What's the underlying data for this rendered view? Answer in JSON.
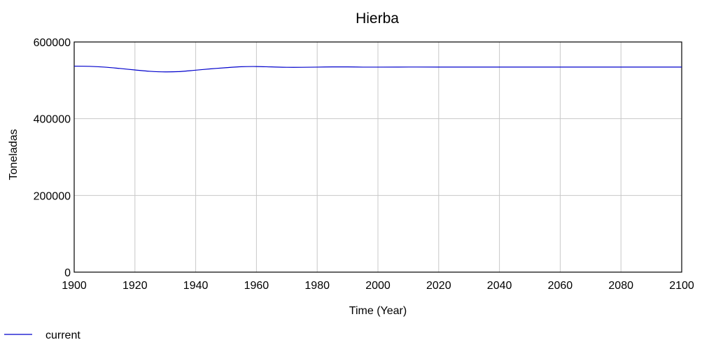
{
  "chart_data": {
    "type": "line",
    "title": "Hierba",
    "xlabel": "Time (Year)",
    "ylabel": "Toneladas",
    "xlim": [
      1900,
      2100
    ],
    "ylim": [
      0,
      600000
    ],
    "x_ticks": [
      "1900",
      "1920",
      "1940",
      "1960",
      "1980",
      "2000",
      "2020",
      "2040",
      "2060",
      "2080",
      "2100"
    ],
    "y_ticks": [
      "0",
      "200000",
      "400000",
      "600000"
    ],
    "grid": true,
    "legend_position": "bottom-left",
    "series": [
      {
        "name": "current",
        "color": "#0000cc",
        "x": [
          1900,
          1905,
          1910,
          1915,
          1920,
          1925,
          1930,
          1935,
          1940,
          1945,
          1950,
          1955,
          1960,
          1965,
          1970,
          1975,
          1980,
          1985,
          1990,
          1995,
          2000,
          2010,
          2020,
          2040,
          2060,
          2080,
          2100
        ],
        "y": [
          537000,
          536500,
          534500,
          531000,
          527000,
          523500,
          522000,
          523000,
          526500,
          530000,
          533000,
          535500,
          536000,
          535000,
          534000,
          534000,
          534500,
          535000,
          535000,
          534500,
          534500,
          534700,
          534600,
          534600,
          534600,
          534600,
          534600
        ]
      }
    ]
  }
}
